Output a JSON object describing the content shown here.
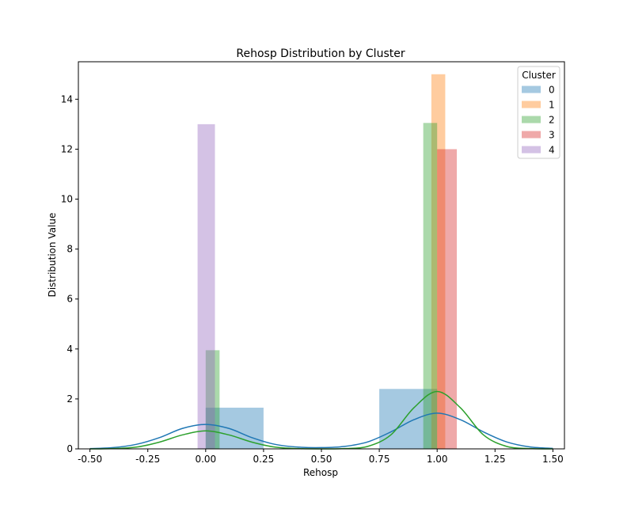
{
  "chart_data": {
    "type": "bar",
    "title": "Rehosp Distribution by Cluster",
    "xlabel": "Rehosp",
    "ylabel": "Distribution Value",
    "xlim": [
      -0.55,
      1.55
    ],
    "ylim": [
      0,
      15.5
    ],
    "x_ticks": [
      -0.5,
      -0.25,
      0.0,
      0.25,
      0.5,
      0.75,
      1.0,
      1.25,
      1.5
    ],
    "x_tick_labels": [
      "-0.50",
      "-0.25",
      "0.00",
      "0.25",
      "0.50",
      "0.75",
      "1.00",
      "1.25",
      "1.50"
    ],
    "y_ticks": [
      0,
      2,
      4,
      6,
      8,
      10,
      12,
      14
    ],
    "y_tick_labels": [
      "0",
      "2",
      "4",
      "6",
      "8",
      "10",
      "12",
      "14"
    ],
    "legend": {
      "title": "Cluster",
      "placement": "top-right"
    },
    "series": [
      {
        "name": "0",
        "color": "#1f77b4",
        "histogram": [
          {
            "x0": 0.0,
            "x1": 0.25,
            "value": 1.65
          },
          {
            "x0": 0.75,
            "x1": 1.0,
            "value": 2.4
          }
        ],
        "density": {
          "x": [
            -0.5,
            -0.4,
            -0.3,
            -0.2,
            -0.1,
            0.0,
            0.1,
            0.2,
            0.3,
            0.4,
            0.5,
            0.6,
            0.7,
            0.8,
            0.9,
            1.0,
            1.1,
            1.2,
            1.3,
            1.4,
            1.5
          ],
          "y": [
            0.01,
            0.05,
            0.18,
            0.45,
            0.82,
            0.98,
            0.82,
            0.45,
            0.18,
            0.07,
            0.05,
            0.1,
            0.28,
            0.68,
            1.17,
            1.43,
            1.17,
            0.68,
            0.28,
            0.08,
            0.02
          ]
        }
      },
      {
        "name": "1",
        "color": "#ff7f0e",
        "histogram": [
          {
            "x0": 0.975,
            "x1": 1.035,
            "value": 15.0
          }
        ]
      },
      {
        "name": "2",
        "color": "#2ca02c",
        "histogram": [
          {
            "x0": 0.0,
            "x1": 0.06,
            "value": 3.95
          },
          {
            "x0": 0.94,
            "x1": 1.0,
            "value": 13.05
          }
        ],
        "density": {
          "x": [
            -0.5,
            -0.4,
            -0.3,
            -0.2,
            -0.1,
            0.0,
            0.1,
            0.2,
            0.3,
            0.4,
            0.5,
            0.6,
            0.7,
            0.8,
            0.9,
            1.0,
            1.1,
            1.2,
            1.3,
            1.4,
            1.5
          ],
          "y": [
            0.0,
            0.01,
            0.07,
            0.27,
            0.56,
            0.72,
            0.56,
            0.27,
            0.07,
            0.01,
            0.0,
            0.01,
            0.1,
            0.56,
            1.65,
            2.3,
            1.65,
            0.56,
            0.1,
            0.01,
            0.0
          ]
        }
      },
      {
        "name": "3",
        "color": "#d62728",
        "histogram": [
          {
            "x0": 1.0,
            "x1": 1.085,
            "value": 12.0
          }
        ]
      },
      {
        "name": "4",
        "color": "#9467bd",
        "histogram": [
          {
            "x0": -0.035,
            "x1": 0.04,
            "value": 13.0
          }
        ]
      }
    ]
  }
}
